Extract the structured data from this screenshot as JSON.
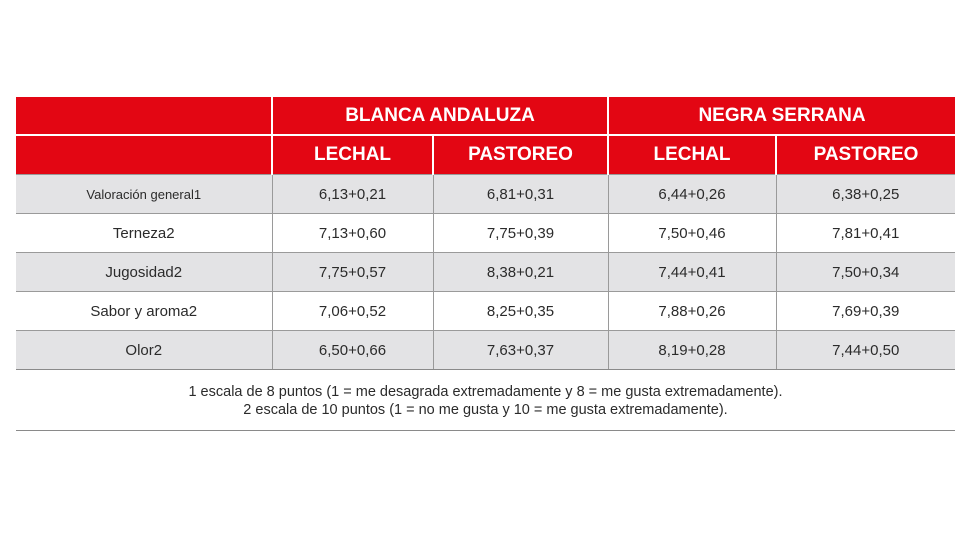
{
  "table": {
    "groups": [
      "BLANCA ANDALUZA",
      "NEGRA SERRANA"
    ],
    "subheaders": [
      "LECHAL",
      "PASTOREO",
      "LECHAL",
      "PASTOREO"
    ],
    "rows": [
      {
        "label": "Valoración general1",
        "values": [
          "6,13+0,21",
          "6,81+0,31",
          "6,44+0,26",
          "6,38+0,25"
        ]
      },
      {
        "label": "Terneza2",
        "values": [
          "7,13+0,60",
          "7,75+0,39",
          "7,50+0,46",
          "7,81+0,41"
        ]
      },
      {
        "label": "Jugosidad2",
        "values": [
          "7,75+0,57",
          "8,38+0,21",
          "7,44+0,41",
          "7,50+0,34"
        ]
      },
      {
        "label": "Sabor y aroma2",
        "values": [
          "7,06+0,52",
          "8,25+0,35",
          "7,88+0,26",
          "7,69+0,39"
        ]
      },
      {
        "label": "Olor2",
        "values": [
          "6,50+0,66",
          "7,63+0,37",
          "8,19+0,28",
          "7,44+0,50"
        ]
      }
    ]
  },
  "notes": [
    "1 escala de 8 puntos (1 = me desagrada extremadamente y 8 = me gusta extremadamente).",
    "2 escala de 10 puntos (1 = no me gusta y 10 = me gusta extremadamente)."
  ],
  "colors": {
    "header_bg": "#e30613",
    "header_text": "#ffffff",
    "row_shade": "#e3e3e5"
  }
}
